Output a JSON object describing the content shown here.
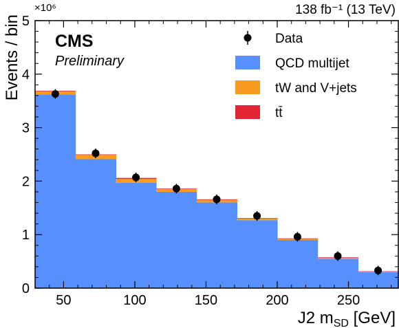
{
  "chart_data": {
    "type": "bar",
    "stacked": true,
    "histogram": true,
    "header": {
      "experiment": "CMS",
      "status": "Preliminary",
      "lumi": "138 fb⁻¹ (13 TeV)",
      "y_multiplier": "×10⁶"
    },
    "xlabel": "J2 m_SD [GeV]",
    "xlabel_main": "J2 m",
    "xlabel_sub": "SD",
    "xlabel_unit": " [GeV]",
    "ylabel": "Events / bin",
    "xlim": [
      30,
      285
    ],
    "ylim": [
      0,
      5
    ],
    "x_ticks": [
      50,
      100,
      150,
      200,
      250
    ],
    "y_ticks": [
      0,
      1,
      2,
      3,
      4,
      5
    ],
    "bin_edges": [
      30,
      58.3,
      86.7,
      115,
      143.3,
      171.7,
      200,
      228.3,
      256.7,
      285
    ],
    "series": [
      {
        "name": "QCD multijet",
        "color": "#5790fc",
        "values": [
          3.62,
          2.41,
          1.97,
          1.8,
          1.6,
          1.27,
          0.9,
          0.55,
          0.3
        ]
      },
      {
        "name": "tW and V+jets",
        "color": "#f89c20",
        "values": [
          0.06,
          0.08,
          0.07,
          0.05,
          0.05,
          0.03,
          0.02,
          0.015,
          0.01
        ]
      },
      {
        "name": "tt̄",
        "color": "#e42536",
        "values": [
          0.01,
          0.01,
          0.02,
          0.01,
          0.01,
          0.01,
          0.01,
          0.01,
          0.005
        ]
      }
    ],
    "data_points": {
      "name": "Data",
      "x": [
        44.2,
        72.5,
        100.8,
        129.2,
        157.5,
        185.8,
        214.2,
        242.5,
        270.8
      ],
      "y": [
        3.63,
        2.52,
        2.07,
        1.86,
        1.66,
        1.35,
        0.96,
        0.6,
        0.33
      ]
    },
    "legend": {
      "position": "top-right",
      "entries": [
        {
          "label": "Data",
          "kind": "marker",
          "color": "#000000"
        },
        {
          "label": "QCD multijet",
          "kind": "box",
          "color": "#5790fc"
        },
        {
          "label": "tW and V+jets",
          "kind": "box",
          "color": "#f89c20"
        },
        {
          "label": "tt̄",
          "kind": "box",
          "color": "#e42536"
        }
      ]
    }
  }
}
